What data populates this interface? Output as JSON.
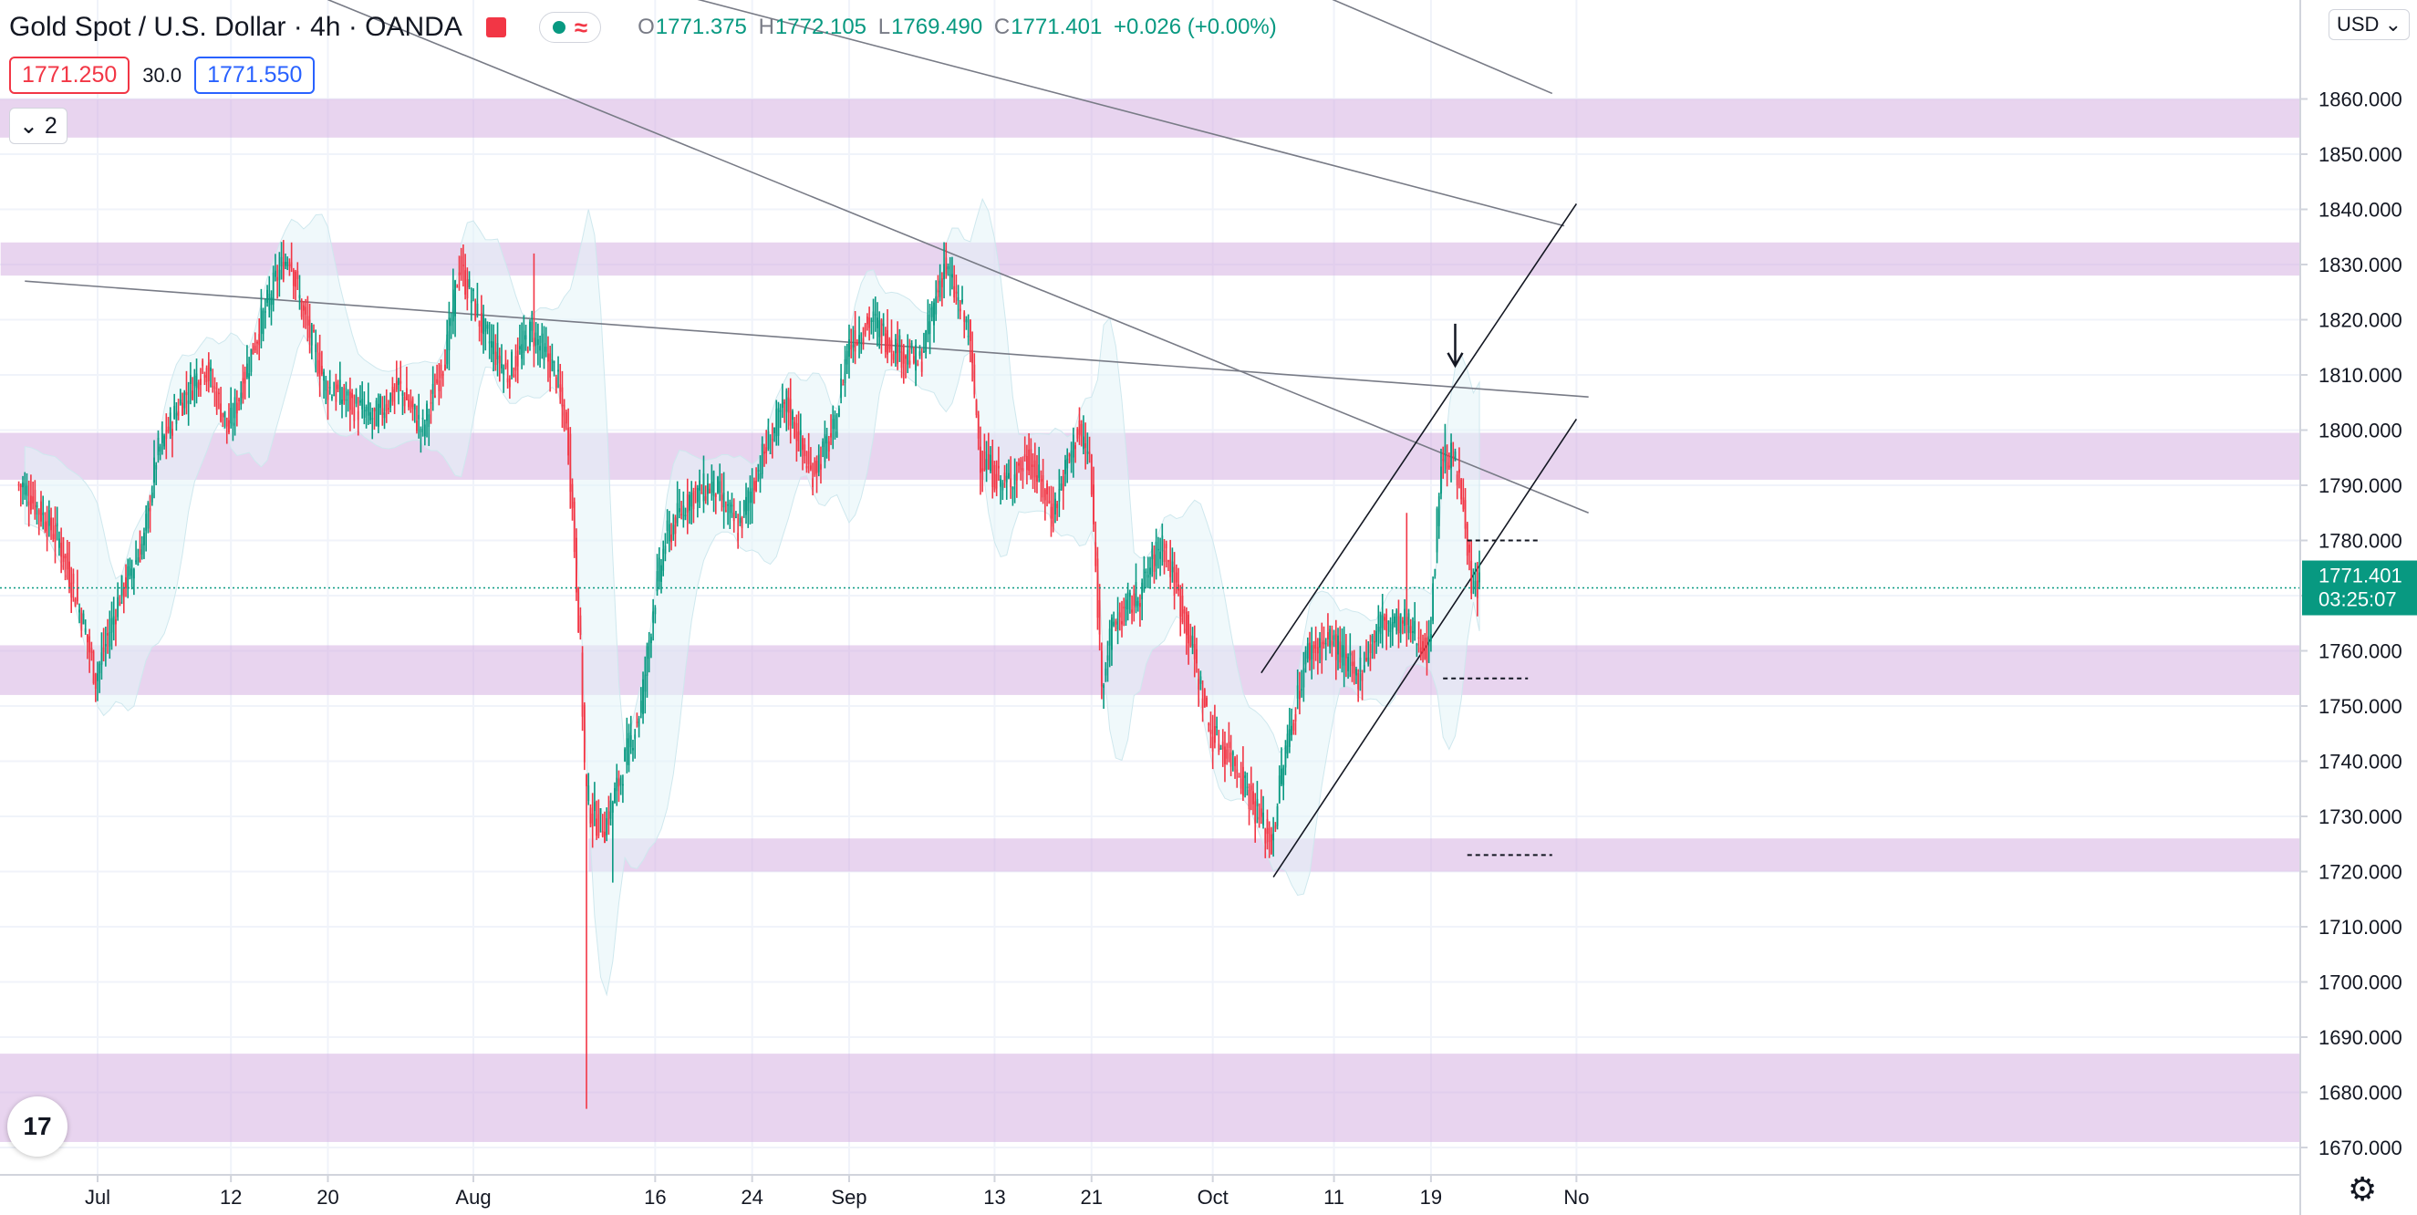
{
  "symbol": "Gold Spot / U.S. Dollar · 4h · OANDA",
  "ohlc": {
    "open_label": "O",
    "open": "1771.375",
    "high_label": "H",
    "high": "1772.105",
    "low_label": "L",
    "low": "1769.490",
    "close_label": "C",
    "close": "1771.401",
    "change": "+0.026 (+0.00%)"
  },
  "bid": "1771.250",
  "spread": "30.0",
  "ask": "1771.550",
  "collapse_label": "2",
  "currency": "USD",
  "last_price": {
    "value": "1771.401",
    "countdown": "03:25:07"
  },
  "chart_data": {
    "type": "candlestick",
    "ylim": [
      1665,
      1865
    ],
    "y_ticks": [
      1860,
      1850,
      1840,
      1830,
      1820,
      1810,
      1800,
      1790,
      1780,
      1770,
      1760,
      1750,
      1740,
      1730,
      1720,
      1710,
      1700,
      1690,
      1680,
      1670
    ],
    "y_tick_labels": [
      "1860.000",
      "1850.000",
      "1840.000",
      "1830.000",
      "1820.000",
      "1810.000",
      "1800.000",
      "1790.000",
      "1780.000",
      "1770.000",
      "1760.000",
      "1750.000",
      "1740.000",
      "1730.000",
      "1720.000",
      "1710.000",
      "1700.000",
      "1690.000",
      "1680.000",
      "1670.000"
    ],
    "x_tick_labels": [
      "Jul",
      "12",
      "20",
      "Aug",
      "16",
      "24",
      "Sep",
      "13",
      "21",
      "Oct",
      "11",
      "19",
      "No"
    ],
    "x_tick_day_offsets": [
      0,
      11,
      19,
      31,
      46,
      54,
      62,
      74,
      82,
      92,
      102,
      110,
      122
    ],
    "price_path": [
      [
        -6,
        1790
      ],
      [
        -3,
        1780
      ],
      [
        -1,
        1765
      ],
      [
        0,
        1755
      ],
      [
        2,
        1770
      ],
      [
        4,
        1780
      ],
      [
        5,
        1795
      ],
      [
        7,
        1805
      ],
      [
        9,
        1812
      ],
      [
        11,
        1800
      ],
      [
        13,
        1815
      ],
      [
        15,
        1828
      ],
      [
        16,
        1832
      ],
      [
        17,
        1822
      ],
      [
        19,
        1808
      ],
      [
        21,
        1805
      ],
      [
        23,
        1802
      ],
      [
        25,
        1808
      ],
      [
        27,
        1800
      ],
      [
        29,
        1815
      ],
      [
        30,
        1830
      ],
      [
        32,
        1818
      ],
      [
        34,
        1810
      ],
      [
        36,
        1818
      ],
      [
        38,
        1810
      ],
      [
        39,
        1798
      ],
      [
        40,
        1760
      ],
      [
        40.4,
        1735
      ],
      [
        41,
        1730
      ],
      [
        42,
        1728
      ],
      [
        43,
        1735
      ],
      [
        45,
        1750
      ],
      [
        46,
        1768
      ],
      [
        47,
        1780
      ],
      [
        49,
        1788
      ],
      [
        51,
        1790
      ],
      [
        53,
        1782
      ],
      [
        55,
        1795
      ],
      [
        57,
        1805
      ],
      [
        59,
        1792
      ],
      [
        61,
        1800
      ],
      [
        62,
        1815
      ],
      [
        64,
        1820
      ],
      [
        66,
        1815
      ],
      [
        68,
        1812
      ],
      [
        70,
        1830
      ],
      [
        72,
        1818
      ],
      [
        73,
        1795
      ],
      [
        75,
        1790
      ],
      [
        77,
        1795
      ],
      [
        79,
        1785
      ],
      [
        81,
        1800
      ],
      [
        82,
        1795
      ],
      [
        83,
        1755
      ],
      [
        84,
        1765
      ],
      [
        86,
        1770
      ],
      [
        88,
        1780
      ],
      [
        90,
        1765
      ],
      [
        92,
        1745
      ],
      [
        94,
        1740
      ],
      [
        96,
        1730
      ],
      [
        97,
        1725
      ],
      [
        98,
        1740
      ],
      [
        100,
        1760
      ],
      [
        102,
        1762
      ],
      [
        104,
        1755
      ],
      [
        106,
        1765
      ],
      [
        108,
        1765
      ],
      [
        110,
        1760
      ],
      [
        111,
        1795
      ],
      [
        112,
        1795
      ],
      [
        113,
        1785
      ],
      [
        113.5,
        1770
      ],
      [
        114,
        1771.401
      ]
    ],
    "wicks": {
      "low": [
        [
          40.3,
          1677
        ],
        [
          42.5,
          1718
        ]
      ],
      "high": [
        [
          16,
          1834
        ],
        [
          30,
          1833
        ],
        [
          36,
          1832
        ],
        [
          70,
          1834
        ],
        [
          108,
          1785
        ],
        [
          111,
          1797
        ]
      ]
    },
    "zones": [
      [
        1853,
        1860
      ],
      [
        1828,
        1834
      ],
      [
        1791,
        1799.5
      ],
      [
        1752,
        1761
      ],
      [
        1720,
        1726
      ],
      [
        1671,
        1687
      ]
    ],
    "trendlines": [
      {
        "from": [
          -6,
          1827
        ],
        "to": [
          123,
          1806
        ]
      },
      {
        "from": [
          20,
          1895
        ],
        "to": [
          121,
          1837
        ]
      },
      {
        "from": [
          70,
          1908
        ],
        "to": [
          120,
          1861
        ]
      },
      {
        "from": [
          19,
          1878
        ],
        "to": [
          123,
          1785
        ]
      },
      {
        "from": [
          96,
          1756
        ],
        "to": [
          122,
          1841
        ]
      },
      {
        "from": [
          97,
          1719
        ],
        "to": [
          122,
          1802
        ]
      }
    ],
    "dashed_levels": [
      [
        113,
        119,
        1780
      ],
      [
        111,
        118,
        1755
      ],
      [
        113,
        120,
        1723
      ]
    ],
    "arrow_marker": [
      112,
      1812
    ],
    "last_price_line": 1771.401
  }
}
